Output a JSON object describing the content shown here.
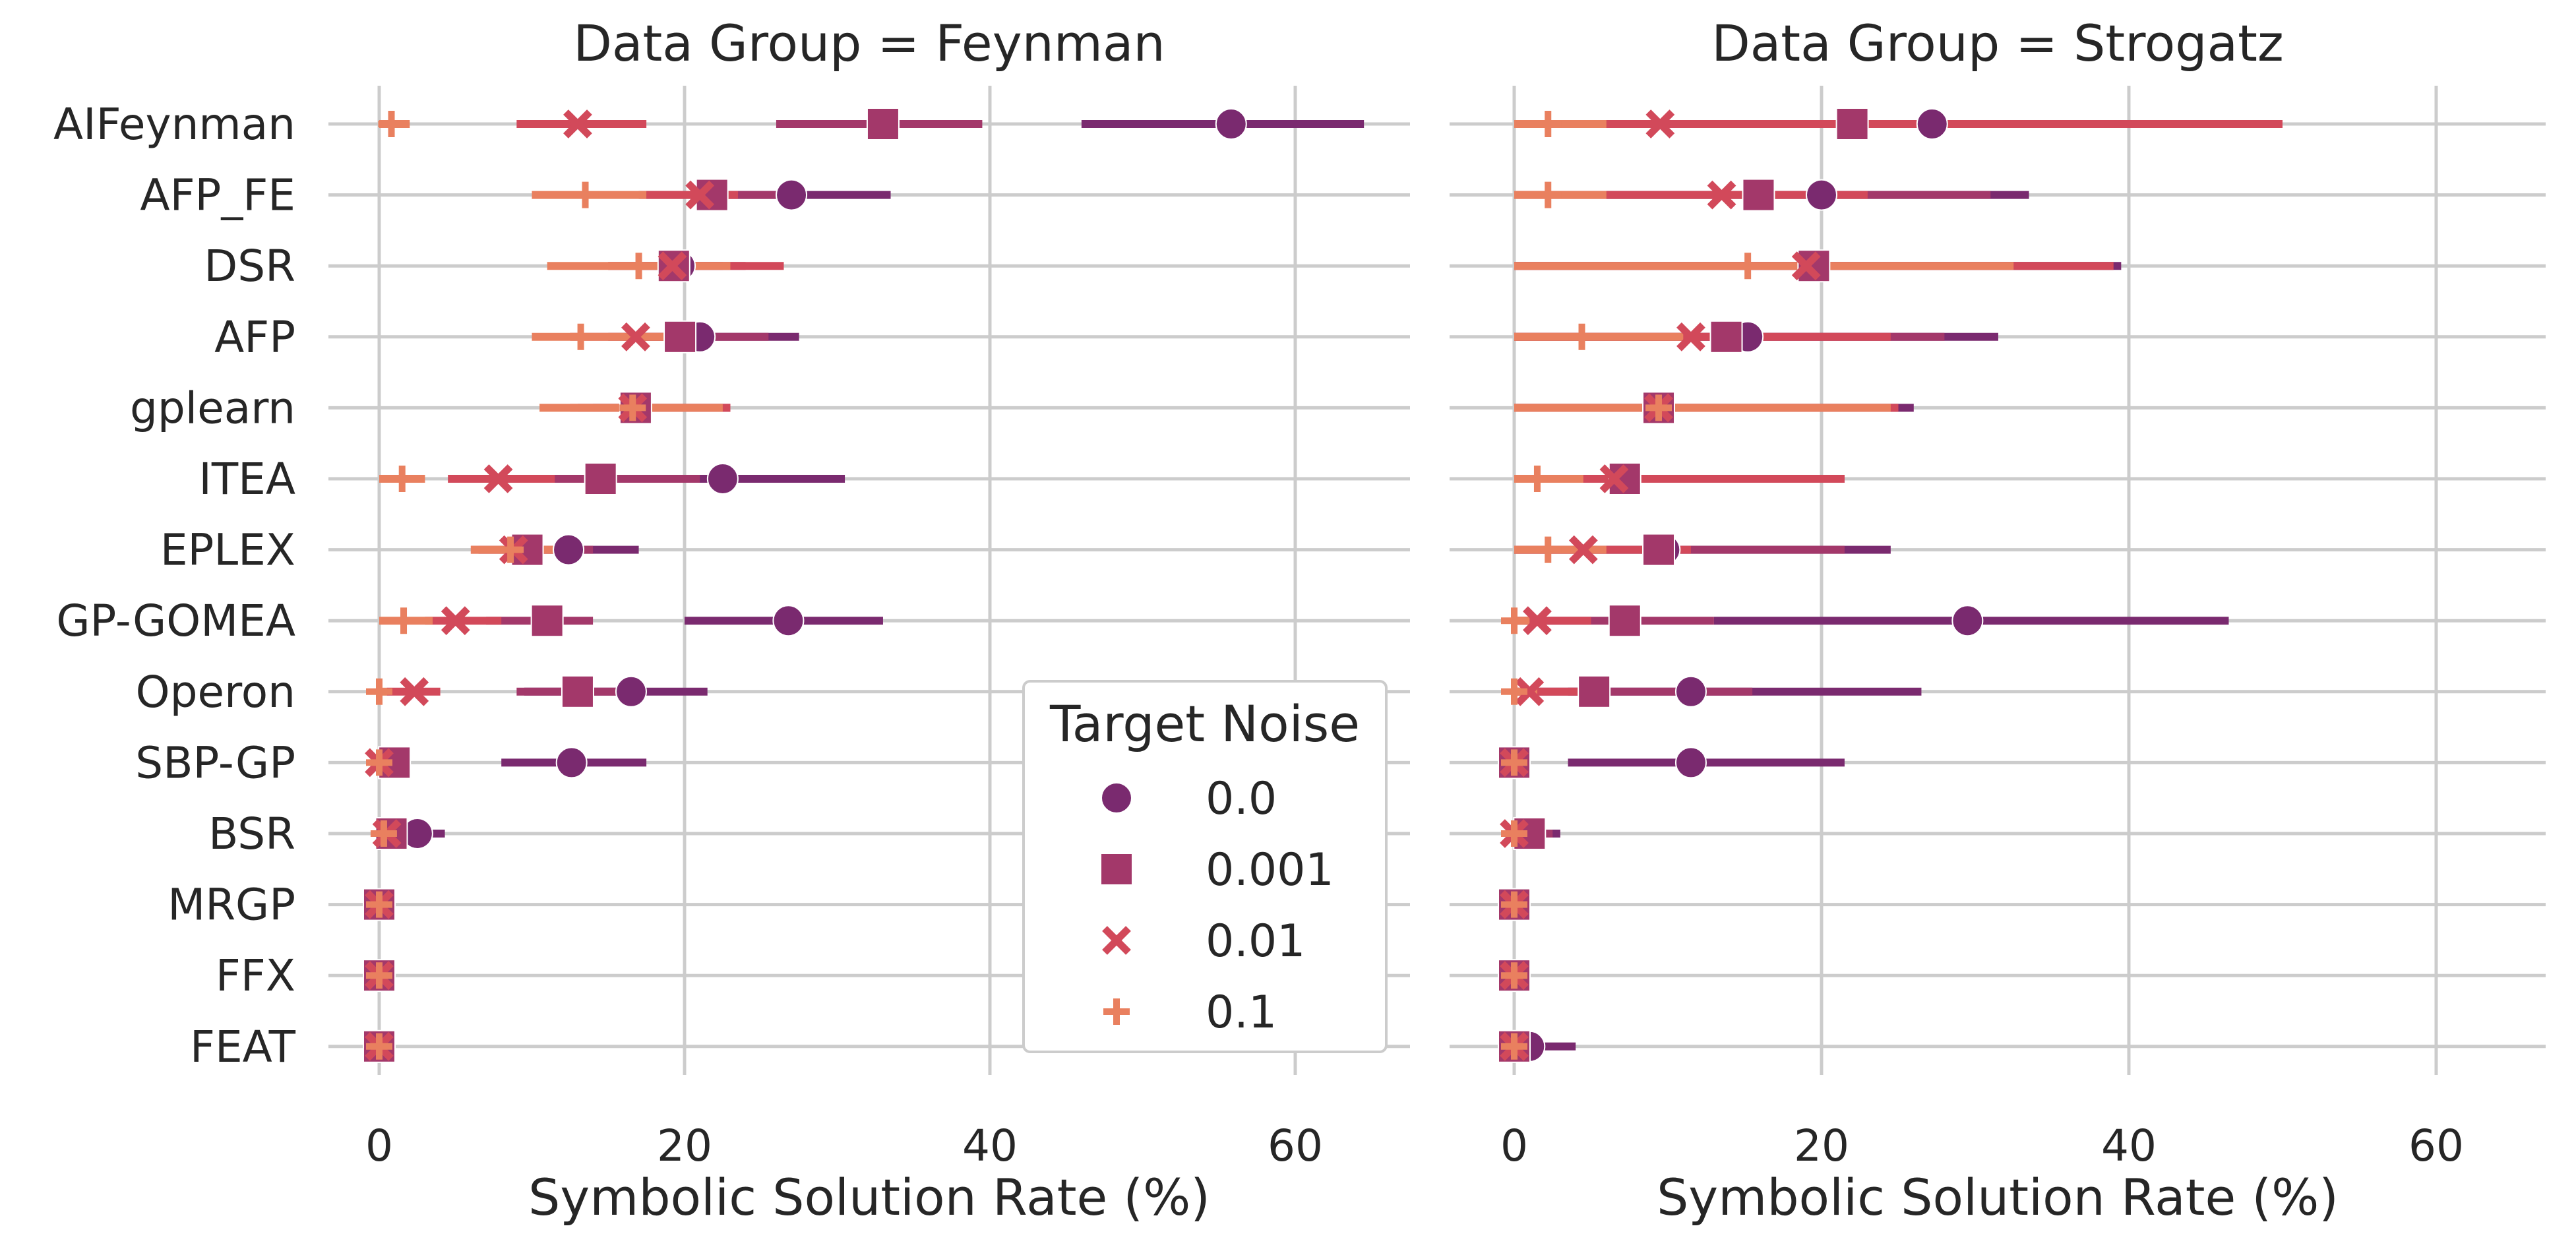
{
  "colors": {
    "0.0": "#7a2a6f",
    "0.001": "#a3386a",
    "0.01": "#d2495a",
    "0.1": "#e9805f"
  },
  "chart_data": [
    {
      "type": "scatter",
      "title": "Data Group = Feynman",
      "xlabel": "Symbolic Solution Rate (%)",
      "ylabel": "",
      "xlim": [
        -5,
        67
      ],
      "xticks": [
        "0",
        "20",
        "40",
        "60"
      ],
      "grid": true,
      "categories": [
        "AIFeynman",
        "AFP_FE",
        "DSR",
        "AFP",
        "gplearn",
        "ITEA",
        "EPLEX",
        "GP-GOMEA",
        "Operon",
        "SBP-GP",
        "BSR",
        "MRGP",
        "FFX",
        "FEAT"
      ],
      "series": [
        {
          "name": "0.0",
          "marker": "circle",
          "values": [
            55.8,
            27.0,
            19.7,
            21.0,
            16.8,
            22.5,
            12.4,
            26.8,
            16.5,
            12.6,
            2.5,
            0.0,
            0.0,
            0.0
          ],
          "ci": [
            [
              46,
              64.5
            ],
            [
              21.5,
              33.5
            ],
            [
              17,
              22.5
            ],
            [
              16,
              27.5
            ],
            [
              14,
              22.5
            ],
            [
              14.5,
              30.5
            ],
            [
              8.5,
              17
            ],
            [
              20,
              33
            ],
            [
              9.5,
              21.5
            ],
            [
              8,
              17.5
            ],
            [
              1,
              4.3
            ],
            [
              0,
              0
            ],
            [
              0,
              0
            ],
            [
              0,
              0
            ]
          ]
        },
        {
          "name": "0.001",
          "marker": "square",
          "values": [
            33.0,
            21.8,
            19.3,
            19.7,
            16.8,
            14.5,
            9.7,
            11.0,
            13.0,
            1.0,
            0.8,
            0.0,
            0.0,
            0.0
          ],
          "ci": [
            [
              26,
              39.5
            ],
            [
              17,
              26.5
            ],
            [
              15,
              24
            ],
            [
              15,
              25.5
            ],
            [
              13,
              23
            ],
            [
              9.5,
              21
            ],
            [
              6.5,
              14
            ],
            [
              7,
              14
            ],
            [
              9,
              17.5
            ],
            [
              0,
              2
            ],
            [
              0,
              2
            ],
            [
              0,
              0
            ],
            [
              0,
              0
            ],
            [
              0,
              0
            ]
          ]
        },
        {
          "name": "0.01",
          "marker": "x",
          "values": [
            13.0,
            21.0,
            19.2,
            16.8,
            16.6,
            7.8,
            8.8,
            5.0,
            2.3,
            0.0,
            0.5,
            0.0,
            0.0,
            0.0
          ],
          "ci": [
            [
              9,
              17.5
            ],
            [
              17.5,
              23.5
            ],
            [
              15,
              26.5
            ],
            [
              12.5,
              21.5
            ],
            [
              12.5,
              23
            ],
            [
              4.5,
              11.5
            ],
            [
              6,
              12.5
            ],
            [
              3,
              8
            ],
            [
              0.5,
              4
            ],
            [
              0,
              0
            ],
            [
              0,
              1
            ],
            [
              0,
              0
            ],
            [
              0,
              0
            ],
            [
              0,
              0
            ]
          ]
        },
        {
          "name": "0.1",
          "marker": "plus",
          "values": [
            0.8,
            13.5,
            17.0,
            13.2,
            16.6,
            1.5,
            8.6,
            1.6,
            0.0,
            0.0,
            0.3,
            0.0,
            0.0,
            0.0
          ],
          "ci": [
            [
              0,
              2
            ],
            [
              10,
              17.5
            ],
            [
              11,
              23
            ],
            [
              10,
              20.5
            ],
            [
              10.5,
              22.5
            ],
            [
              0,
              3
            ],
            [
              6,
              11.5
            ],
            [
              0,
              3.5
            ],
            [
              0,
              0.5
            ],
            [
              0,
              0
            ],
            [
              0,
              0.5
            ],
            [
              0,
              0
            ],
            [
              0,
              0
            ],
            [
              0,
              0
            ]
          ]
        }
      ]
    },
    {
      "type": "scatter",
      "title": "Data Group = Strogatz",
      "xlabel": "Symbolic Solution Rate (%)",
      "ylabel": "",
      "xlim": [
        -3.5,
        68
      ],
      "xticks": [
        "0",
        "20",
        "40",
        "60"
      ],
      "grid": true,
      "categories": [
        "AIFeynman",
        "AFP_FE",
        "DSR",
        "AFP",
        "gplearn",
        "ITEA",
        "EPLEX",
        "GP-GOMEA",
        "Operon",
        "SBP-GP",
        "BSR",
        "MRGP",
        "FFX",
        "FEAT"
      ],
      "series": [
        {
          "name": "0.0",
          "marker": "circle",
          "values": [
            27.2,
            20.0,
            19.5,
            15.2,
            9.4,
            7.2,
            9.8,
            29.5,
            11.5,
            11.5,
            1.0,
            0.0,
            0.0,
            1.0
          ],
          "ci": [
            [
              5,
              50
            ],
            [
              6,
              33.5
            ],
            [
              0,
              39.5
            ],
            [
              0,
              31.5
            ],
            [
              0,
              26
            ],
            [
              0,
              21.5
            ],
            [
              0,
              24.5
            ],
            [
              13,
              46.5
            ],
            [
              3.5,
              26.5
            ],
            [
              3.5,
              21.5
            ],
            [
              0,
              3
            ],
            [
              0,
              0
            ],
            [
              0,
              0
            ],
            [
              0,
              4
            ]
          ]
        },
        {
          "name": "0.001",
          "marker": "square",
          "values": [
            22.0,
            15.9,
            19.5,
            13.8,
            9.4,
            7.2,
            9.4,
            7.2,
            5.2,
            0.0,
            1.0,
            0.0,
            0.0,
            0.0
          ],
          "ci": [
            [
              6,
              43
            ],
            [
              6,
              31
            ],
            [
              0,
              39
            ],
            [
              0,
              28
            ],
            [
              0,
              25
            ],
            [
              0,
              21.5
            ],
            [
              0,
              21.5
            ],
            [
              0,
              13
            ],
            [
              0,
              15.5
            ],
            [
              0,
              0.5
            ],
            [
              0,
              2.5
            ],
            [
              0,
              0
            ],
            [
              0,
              0
            ],
            [
              0,
              0.5
            ]
          ]
        },
        {
          "name": "0.01",
          "marker": "x",
          "values": [
            9.5,
            13.5,
            19.0,
            11.5,
            9.4,
            6.5,
            4.5,
            1.5,
            1.0,
            0.0,
            0.0,
            0.0,
            0.0,
            0.0
          ],
          "ci": [
            [
              0,
              50
            ],
            [
              0,
              23
            ],
            [
              0,
              39
            ],
            [
              0,
              24.5
            ],
            [
              0,
              25
            ],
            [
              0,
              21.5
            ],
            [
              0,
              11.5
            ],
            [
              0,
              5
            ],
            [
              0,
              6
            ],
            [
              0,
              0
            ],
            [
              0,
              0.5
            ],
            [
              0,
              0
            ],
            [
              0,
              0
            ],
            [
              0,
              0
            ]
          ]
        },
        {
          "name": "0.1",
          "marker": "plus",
          "values": [
            2.2,
            2.2,
            15.2,
            4.4,
            9.4,
            1.5,
            2.2,
            0.0,
            0.0,
            0.0,
            0.0,
            0.0,
            0.0,
            0.0
          ],
          "ci": [
            [
              0,
              6
            ],
            [
              0,
              6
            ],
            [
              0,
              32.5
            ],
            [
              0,
              11
            ],
            [
              0,
              24.5
            ],
            [
              0,
              4.5
            ],
            [
              0,
              6
            ],
            [
              0,
              1
            ],
            [
              0,
              1.5
            ],
            [
              0,
              0
            ],
            [
              0,
              0
            ],
            [
              0,
              0
            ],
            [
              0,
              0
            ],
            [
              0,
              0
            ]
          ]
        }
      ]
    }
  ],
  "legend": {
    "title": "Target Noise",
    "position": "lower-right of left panel",
    "items": [
      "0.0",
      "0.001",
      "0.01",
      "0.1"
    ]
  }
}
